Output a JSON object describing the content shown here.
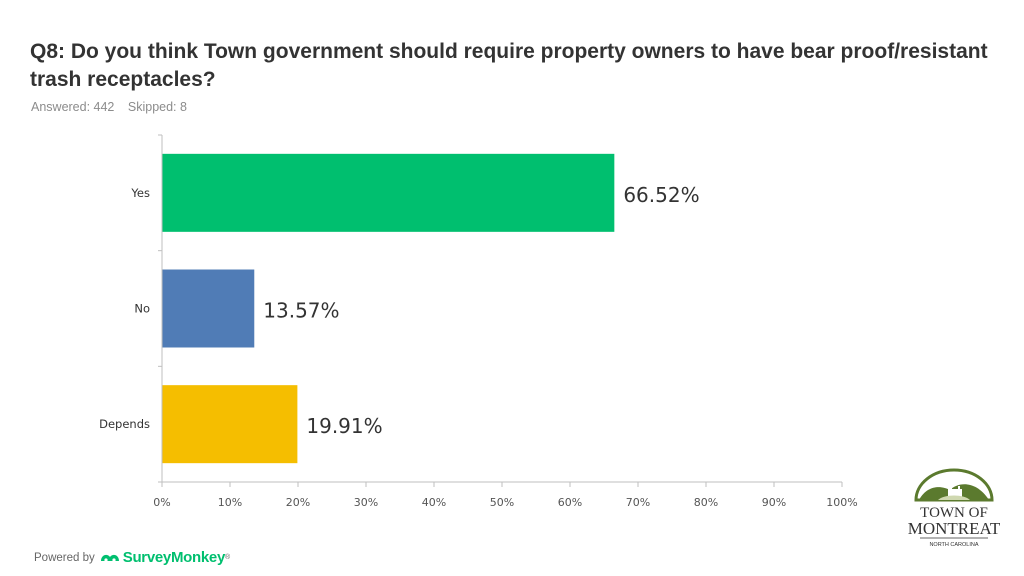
{
  "header": {
    "title": "Q8: Do you think Town government should require property owners to have bear proof/resistant trash receptacles?",
    "answered": "Answered: 442",
    "skipped": "Skipped: 8"
  },
  "footer": {
    "powered_by": "Powered by",
    "brand": "SurveyMonkey",
    "trademark": "®"
  },
  "logo": {
    "line1": "TOWN OF",
    "line2": "MONTREAT",
    "line3": "NORTH CAROLINA",
    "colors": {
      "green": "#5b7a2e",
      "dark": "#333333"
    }
  },
  "chart_data": {
    "type": "bar",
    "orientation": "horizontal",
    "categories": [
      "Yes",
      "No",
      "Depends"
    ],
    "values": [
      66.52,
      13.57,
      19.91
    ],
    "labels": [
      "66.52%",
      "13.57%",
      "19.91%"
    ],
    "colors": [
      "#00bf6f",
      "#507cb6",
      "#f5be00"
    ],
    "xlim": [
      0,
      100
    ],
    "xticks": [
      "0%",
      "10%",
      "20%",
      "30%",
      "40%",
      "50%",
      "60%",
      "70%",
      "80%",
      "90%",
      "100%"
    ],
    "grid": false
  }
}
